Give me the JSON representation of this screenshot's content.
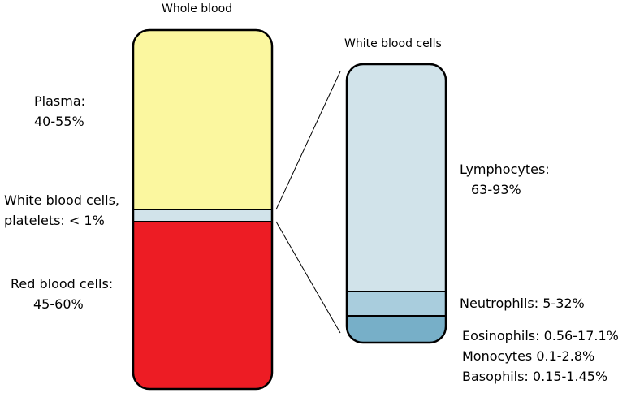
{
  "whole_blood": {
    "title": "Whole blood",
    "layers": [
      {
        "name": "Plasma:",
        "value": "40-55%",
        "color": "#fbf79f"
      },
      {
        "name": "White blood cells,",
        "value": "platelets: < 1%",
        "color": "#d1e3ea"
      },
      {
        "name": "Red blood cells:",
        "value": "45-60%",
        "color": "#ed1c24"
      }
    ]
  },
  "white_blood_cells": {
    "title": "White blood cells",
    "layers": [
      {
        "name": "Lymphocytes:",
        "value": "63-93%",
        "color": "#d1e3ea"
      },
      {
        "name": "Neutrophils: 5-32%",
        "color": "#a9cddd"
      },
      {
        "name": "Eosinophils: 0.56-17.1%",
        "color": "#77afc8"
      },
      {
        "name": "Monocytes 0.1-2.8%"
      },
      {
        "name": "Basophils: 0.15-1.45%"
      }
    ]
  }
}
